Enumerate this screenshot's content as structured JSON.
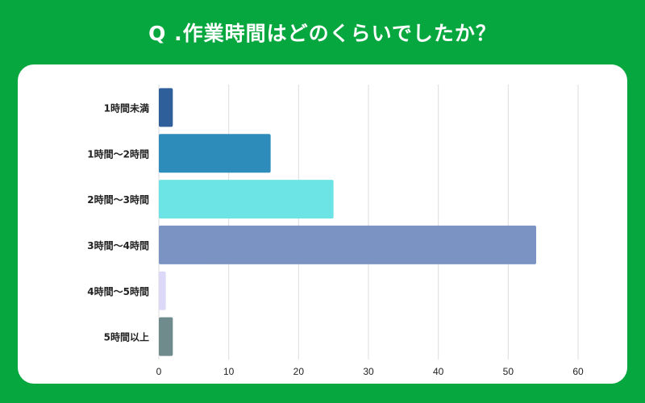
{
  "title": "Q .作業時間はどのくらいでしたか？",
  "chart_data": {
    "type": "bar",
    "orientation": "horizontal",
    "title": "Q .作業時間はどのくらいでしたか？",
    "categories": [
      "1時間未満",
      "1時間～2時間",
      "2時間～3時間",
      "3時間～4時間",
      "4時間～5時間",
      "5時間以上"
    ],
    "values": [
      2,
      16,
      25,
      54,
      1,
      2
    ],
    "colors": [
      "#2e5f9b",
      "#2e8cba",
      "#6ce4e6",
      "#7b93c3",
      "#dcd9f8",
      "#6f8b8b"
    ],
    "xlim": [
      0,
      60
    ],
    "xticks": [
      0,
      10,
      20,
      30,
      40,
      50,
      60
    ],
    "grid": true,
    "xlabel": "",
    "ylabel": ""
  }
}
